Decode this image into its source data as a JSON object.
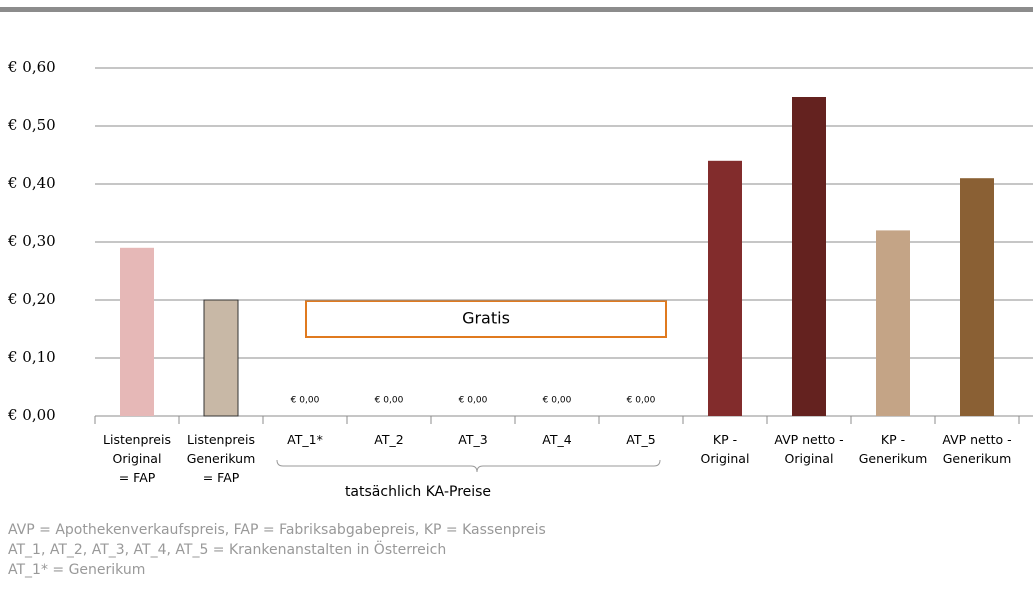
{
  "chart_data": {
    "type": "bar",
    "categories": [
      [
        "Listenpreis",
        "Original",
        "= FAP"
      ],
      [
        "Listenpreis",
        "Generikum",
        "= FAP"
      ],
      [
        "AT_1*"
      ],
      [
        "AT_2"
      ],
      [
        "AT_3"
      ],
      [
        "AT_4"
      ],
      [
        "AT_5"
      ],
      [
        "KP -",
        "Original"
      ],
      [
        "AVP netto -",
        "Original"
      ],
      [
        "KP -",
        "Generikum"
      ],
      [
        "AVP netto -",
        "Generikum"
      ]
    ],
    "values": [
      0.29,
      0.2,
      0,
      0,
      0,
      0,
      0,
      0.44,
      0.55,
      0.32,
      0.41
    ],
    "value_labels": [
      null,
      null,
      "€ 0,00",
      "€ 0,00",
      "€ 0,00",
      "€ 0,00",
      "€ 0,00",
      null,
      null,
      null,
      null
    ],
    "colors": [
      "#e6b8b7",
      "#c8b8a6",
      "#999999",
      "#999999",
      "#999999",
      "#999999",
      "#999999",
      "#822c2c",
      "#64221f",
      "#c4a486",
      "#8a6034"
    ],
    "ylim": [
      0,
      0.6
    ],
    "yticks": [
      {
        "value": 0,
        "label": "€ 0,00"
      },
      {
        "value": 0.1,
        "label": "€ 0,10"
      },
      {
        "value": 0.2,
        "label": "€ 0,20"
      },
      {
        "value": 0.3,
        "label": "€ 0,30"
      },
      {
        "value": 0.4,
        "label": "€ 0,40"
      },
      {
        "value": 0.5,
        "label": "€ 0,50"
      },
      {
        "value": 0.6,
        "label": "€ 0,60"
      }
    ],
    "grid": true,
    "annotations": {
      "box": "Gratis",
      "brace": "tatsächlich KA-Preise"
    },
    "footnotes": [
      "AVP = Apothekenverkaufspreis, FAP = Fabriksabgabepreis, KP = Kassenpreis",
      "AT_1, AT_2, AT_3, AT_4, AT_5 = Krankenanstalten in Österreich",
      "AT_1* = Generikum"
    ]
  }
}
